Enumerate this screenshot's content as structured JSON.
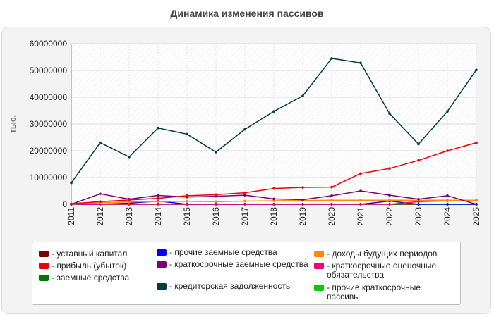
{
  "page": {
    "title": "Динамика изменения пассивов"
  },
  "chart_data": {
    "type": "line",
    "title": "Динамика изменения пассивов",
    "xlabel": "",
    "ylabel": "тыс.",
    "ylim": [
      0,
      60000000
    ],
    "yticks": [
      "0",
      "10000000",
      "20000000",
      "30000000",
      "40000000",
      "50000000",
      "60000000"
    ],
    "categories": [
      "2011",
      "2012",
      "2013",
      "2014",
      "2015",
      "2016",
      "2017",
      "2018",
      "2019",
      "2020",
      "2021",
      "2022",
      "2023",
      "2024",
      "2025"
    ],
    "grid": true,
    "legend_position": "bottom",
    "series": [
      {
        "name": "уставный капитал",
        "color": "#7b0000",
        "values": [
          50000,
          50000,
          50000,
          50000,
          50000,
          50000,
          50000,
          50000,
          50000,
          50000,
          50000,
          50000,
          50000,
          50000,
          50000
        ]
      },
      {
        "name": "прибыль (убыток)",
        "color": "#ee0000",
        "values": [
          200000,
          1000000,
          1600000,
          2200000,
          3200000,
          3600000,
          4300000,
          5900000,
          6300000,
          6400000,
          11500000,
          13400000,
          16400000,
          20000000,
          23000000
        ]
      },
      {
        "name": "заемные средства",
        "color": "#007700",
        "values": [
          0,
          0,
          0,
          0,
          0,
          0,
          0,
          0,
          0,
          0,
          0,
          0,
          0,
          0,
          0
        ]
      },
      {
        "name": "прочие заемные средства",
        "color": "#0000ee",
        "values": [
          0,
          0,
          400000,
          1200000,
          0,
          0,
          0,
          0,
          0,
          0,
          0,
          1200000,
          0,
          0,
          0
        ]
      },
      {
        "name": "краткосрочные заемные средства",
        "color": "#7a007a",
        "values": [
          0,
          3900000,
          1900000,
          3300000,
          2700000,
          3000000,
          3400000,
          2000000,
          1700000,
          3200000,
          5000000,
          3400000,
          1900000,
          3200000,
          0
        ]
      },
      {
        "name": "кредиторская задолженность",
        "color": "#003c3c",
        "values": [
          8000000,
          23000000,
          17700000,
          28500000,
          26200000,
          19500000,
          28000000,
          34700000,
          40500000,
          54500000,
          52800000,
          33900000,
          22500000,
          34700000,
          50200000
        ]
      },
      {
        "name": "доходы будущих периодов",
        "color": "#ff8800",
        "values": [
          0,
          600000,
          900000,
          1000000,
          1100000,
          1000000,
          1200000,
          1300000,
          1400000,
          1500000,
          1500000,
          1500000,
          1500000,
          1500000,
          1500000
        ]
      },
      {
        "name": "краткосрочные оценочные обязательства",
        "color": "#ee0077",
        "values": [
          0,
          0,
          0,
          0,
          0,
          0,
          0,
          0,
          0,
          0,
          0,
          0,
          1000000,
          1300000,
          1500000
        ]
      },
      {
        "name": "прочие краткосрочные пассивы",
        "color": "#00cc00",
        "values": [
          0,
          0,
          0,
          0,
          0,
          0,
          0,
          0,
          0,
          0,
          0,
          0,
          0,
          0,
          0
        ]
      }
    ]
  },
  "legend": {
    "items": [
      {
        "label": "- уставный капитал",
        "color": "#7b0000"
      },
      {
        "label": "- прибыль (убыток)",
        "color": "#ee0000"
      },
      {
        "label": "- заемные средства",
        "color": "#007700"
      },
      {
        "label": "- прочие заемные средства",
        "color": "#0000ee"
      },
      {
        "label": "- краткосрочные заемные средства",
        "color": "#7a007a"
      },
      {
        "label": "- кредиторская задолженность",
        "color": "#003c3c"
      },
      {
        "label": "- доходы будущих периодов",
        "color": "#ff8800"
      },
      {
        "label": "- краткосрочные оценочные обязательства",
        "color": "#ee0077"
      },
      {
        "label": "- прочие краткосрочные пассивы",
        "color": "#00cc00"
      }
    ]
  }
}
